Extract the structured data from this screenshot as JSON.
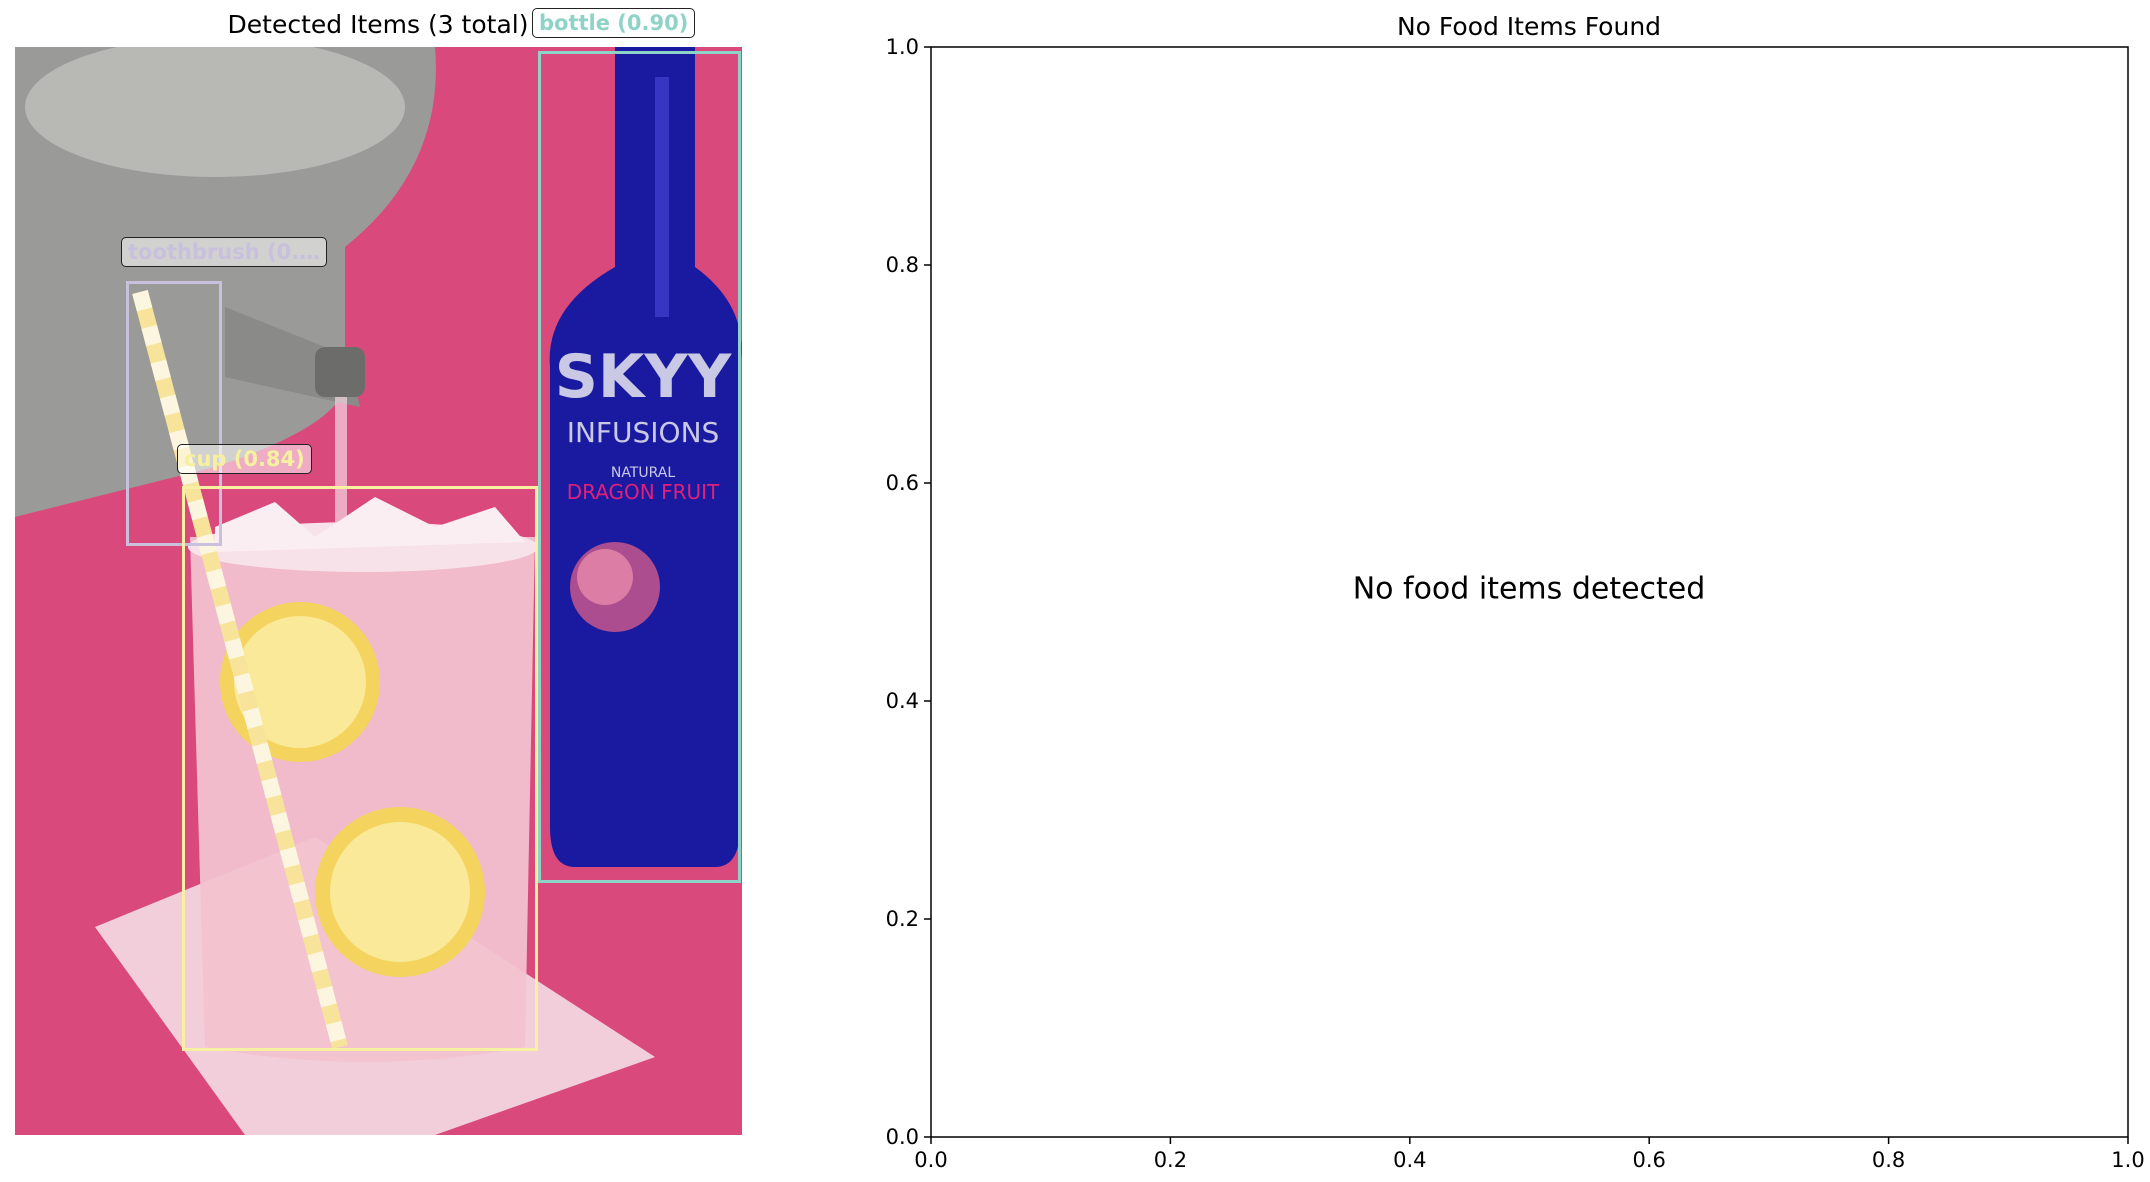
{
  "left_panel": {
    "title": "Detected Items (3 total)",
    "detections": [
      {
        "label": "bottle (0.90)",
        "color": "#8fd3c8"
      },
      {
        "label": "toothbrush (0.…",
        "color": "#c8c0dc"
      },
      {
        "label": "cup (0.84)",
        "color": "#f7f0a0"
      }
    ],
    "photo_colors": {
      "background": "#d9497c",
      "bottle": "#1a1aa0",
      "kettle": "#9a9a98",
      "glass": "#f2c2d0",
      "lemon": "#f4d35e",
      "napkin": "#f4dde6"
    },
    "bottle_text": [
      "SKYY",
      "INFUSIONS",
      "NATURAL",
      "DRAGON FRUIT"
    ]
  },
  "chart_data": {
    "type": "scatter",
    "title": "No Food Items Found",
    "xlabel": "",
    "ylabel": "",
    "xlim": [
      0.0,
      1.0
    ],
    "ylim": [
      0.0,
      1.0
    ],
    "xticks": [
      "0.0",
      "0.2",
      "0.4",
      "0.6",
      "0.8",
      "1.0"
    ],
    "yticks": [
      "0.0",
      "0.2",
      "0.4",
      "0.6",
      "0.8",
      "1.0"
    ],
    "series": [],
    "annotation": "No food items detected",
    "grid": false
  }
}
